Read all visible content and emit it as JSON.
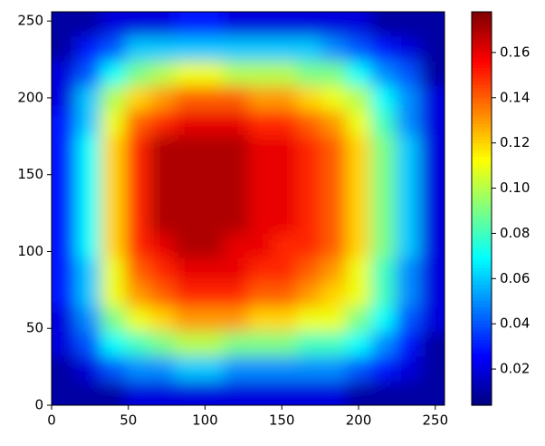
{
  "chart_data": {
    "type": "heatmap",
    "colormap": "jet",
    "xlim": [
      0,
      256
    ],
    "ylim": [
      0,
      256
    ],
    "xticks": [
      0,
      50,
      100,
      150,
      200,
      250
    ],
    "yticks": [
      0,
      50,
      100,
      150,
      200,
      250
    ],
    "clim": [
      0.004,
      0.178
    ],
    "cticks": [
      0.02,
      0.04,
      0.06,
      0.08,
      {
        "value": 0.1,
        "label": "0.10"
      },
      0.12,
      0.14,
      0.16
    ],
    "values": [
      [
        0.01,
        0.01,
        0.01,
        0.02,
        0.02,
        0.02,
        0.02,
        0.02,
        0.02,
        0.02,
        0.02,
        0.02,
        0.01,
        0.01,
        0.01,
        0.01
      ],
      [
        0.01,
        0.02,
        0.04,
        0.05,
        0.05,
        0.06,
        0.06,
        0.05,
        0.05,
        0.05,
        0.05,
        0.05,
        0.04,
        0.03,
        0.02,
        0.01
      ],
      [
        0.02,
        0.04,
        0.07,
        0.08,
        0.09,
        0.1,
        0.1,
        0.09,
        0.09,
        0.09,
        0.08,
        0.08,
        0.07,
        0.05,
        0.03,
        0.01
      ],
      [
        0.02,
        0.05,
        0.09,
        0.11,
        0.12,
        0.13,
        0.13,
        0.13,
        0.12,
        0.12,
        0.11,
        0.11,
        0.09,
        0.07,
        0.04,
        0.02
      ],
      [
        0.03,
        0.06,
        0.11,
        0.13,
        0.14,
        0.15,
        0.15,
        0.15,
        0.14,
        0.14,
        0.13,
        0.12,
        0.11,
        0.08,
        0.05,
        0.02
      ],
      [
        0.03,
        0.06,
        0.11,
        0.14,
        0.15,
        0.16,
        0.16,
        0.16,
        0.15,
        0.15,
        0.14,
        0.13,
        0.11,
        0.08,
        0.05,
        0.02
      ],
      [
        0.03,
        0.07,
        0.12,
        0.15,
        0.16,
        0.17,
        0.17,
        0.16,
        0.16,
        0.15,
        0.15,
        0.14,
        0.12,
        0.09,
        0.06,
        0.02
      ],
      [
        0.03,
        0.07,
        0.12,
        0.15,
        0.17,
        0.17,
        0.17,
        0.17,
        0.16,
        0.16,
        0.15,
        0.14,
        0.12,
        0.09,
        0.06,
        0.02
      ],
      [
        0.03,
        0.07,
        0.12,
        0.15,
        0.17,
        0.17,
        0.17,
        0.17,
        0.16,
        0.16,
        0.15,
        0.14,
        0.12,
        0.09,
        0.06,
        0.02
      ],
      [
        0.03,
        0.07,
        0.12,
        0.15,
        0.17,
        0.17,
        0.17,
        0.17,
        0.16,
        0.16,
        0.15,
        0.14,
        0.12,
        0.09,
        0.06,
        0.02
      ],
      [
        0.03,
        0.07,
        0.12,
        0.15,
        0.17,
        0.17,
        0.17,
        0.17,
        0.16,
        0.16,
        0.15,
        0.14,
        0.12,
        0.09,
        0.06,
        0.02
      ],
      [
        0.03,
        0.06,
        0.11,
        0.14,
        0.15,
        0.16,
        0.16,
        0.16,
        0.15,
        0.15,
        0.14,
        0.13,
        0.11,
        0.08,
        0.05,
        0.02
      ],
      [
        0.02,
        0.06,
        0.1,
        0.12,
        0.13,
        0.14,
        0.14,
        0.14,
        0.13,
        0.13,
        0.12,
        0.11,
        0.1,
        0.07,
        0.05,
        0.02
      ],
      [
        0.02,
        0.04,
        0.07,
        0.09,
        0.1,
        0.11,
        0.11,
        0.1,
        0.1,
        0.1,
        0.09,
        0.09,
        0.07,
        0.05,
        0.04,
        0.01
      ],
      [
        0.01,
        0.03,
        0.04,
        0.06,
        0.06,
        0.06,
        0.06,
        0.06,
        0.06,
        0.06,
        0.06,
        0.05,
        0.04,
        0.03,
        0.02,
        0.01
      ],
      [
        0.01,
        0.01,
        0.02,
        0.02,
        0.02,
        0.03,
        0.03,
        0.02,
        0.02,
        0.02,
        0.02,
        0.02,
        0.02,
        0.01,
        0.01,
        0.01
      ]
    ]
  }
}
